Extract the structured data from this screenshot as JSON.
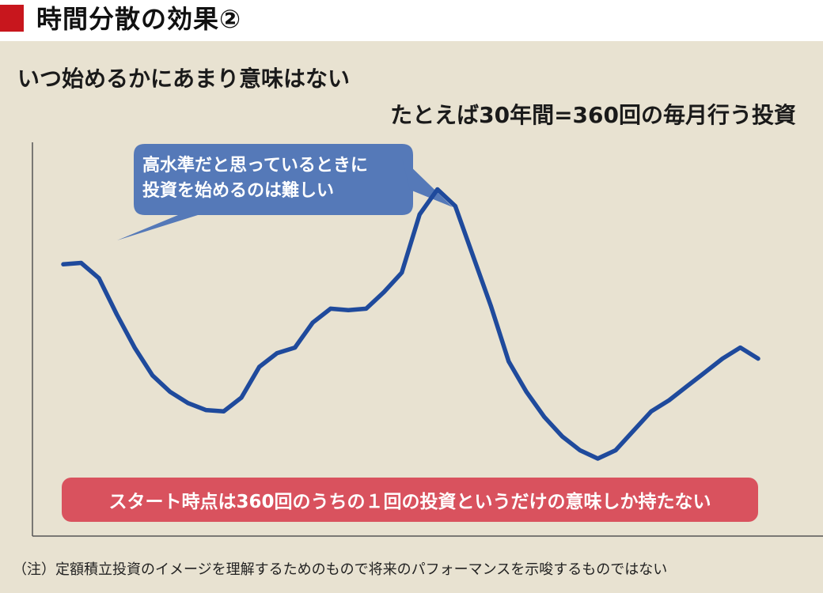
{
  "header": {
    "title": "時間分散の効果②",
    "accent_color": "#c8161d"
  },
  "subtitles": {
    "line1": "いつ始めるかにあまり意味はない",
    "line2": "たとえば30年間=360回の毎月行う投資"
  },
  "callouts": {
    "high_level": {
      "line1": "高水準だと思っているときに",
      "line2": "投資を始めるのは難しい",
      "color": "#5579b8"
    },
    "start_point": {
      "text": "スタート時点は360回のうちの１回の投資というだけの意味しか持たない",
      "color": "#d9525e"
    }
  },
  "footnote": "（注）定額積立投資のイメージを理解するためのもので将来のパフォーマンスを示唆するものではない",
  "colors": {
    "background": "#e8e2d1",
    "line": "#1f4a9c"
  },
  "chart_data": {
    "type": "line",
    "title": "",
    "xlabel": "",
    "ylabel": "",
    "grid": false,
    "x": [
      0,
      1,
      2,
      3,
      4,
      5,
      6,
      7,
      8,
      9,
      10,
      11,
      12,
      13,
      14,
      15,
      16,
      17,
      18,
      19,
      20,
      21,
      22,
      23,
      24,
      25,
      26,
      27,
      28,
      29,
      30,
      31,
      32,
      33,
      34,
      35,
      36,
      37,
      38,
      39
    ],
    "xlim": [
      0,
      39
    ],
    "ylim": [
      0,
      100
    ],
    "series": [
      {
        "values": [
          72,
          72.5,
          67,
          54,
          42,
          32,
          26,
          22,
          19.5,
          19,
          24,
          35,
          40,
          42,
          51,
          56,
          55.5,
          56,
          62,
          69,
          90,
          99,
          93,
          75,
          57,
          37,
          26,
          17,
          10,
          5,
          2,
          5,
          12,
          19,
          23,
          28,
          33,
          38,
          42,
          38
        ]
      }
    ]
  }
}
